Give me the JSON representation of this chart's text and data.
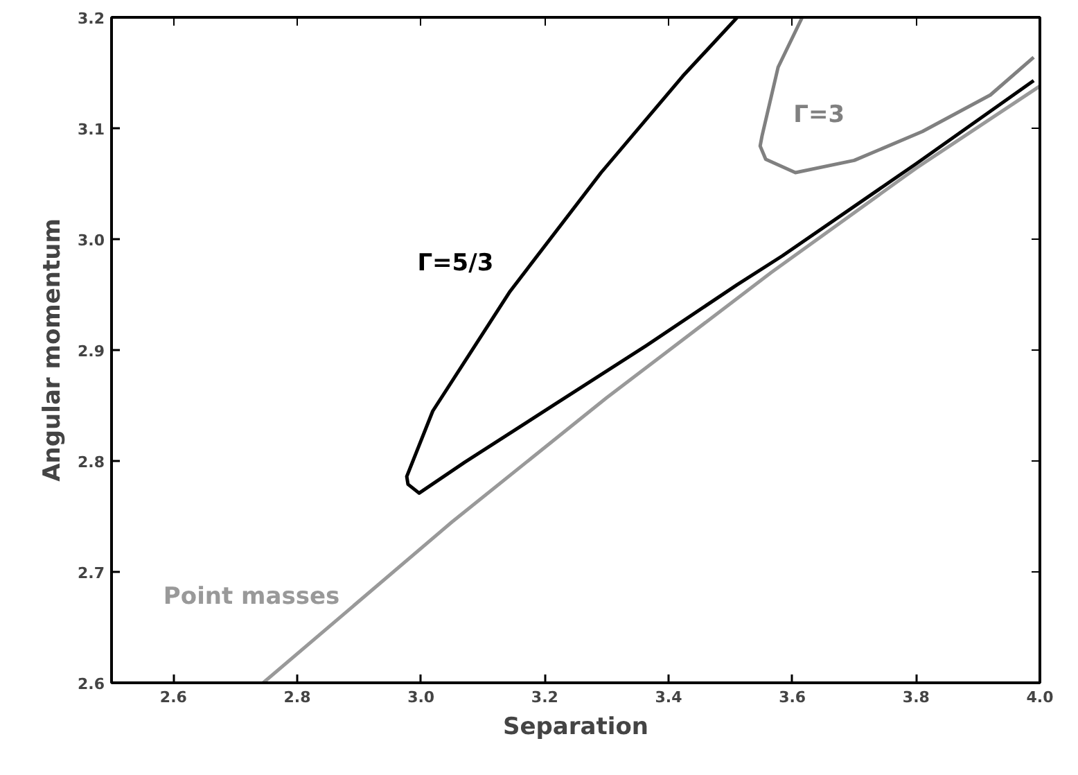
{
  "chart_data": {
    "type": "line",
    "xlabel": "Separation",
    "ylabel": "Angular momentum",
    "xlim": [
      2.5,
      4.0
    ],
    "ylim": [
      2.6,
      3.2
    ],
    "xticks": [
      2.6,
      2.8,
      {
        "value": 3.0,
        "label": "3.0"
      },
      3.2,
      3.4,
      3.6,
      3.8,
      {
        "value": 4.0,
        "label": "4.0"
      }
    ],
    "yticks": [
      2.6,
      2.7,
      2.8,
      2.9,
      {
        "value": 3.0,
        "label": "3.0"
      },
      3.1,
      3.2
    ],
    "series": [
      {
        "name": "Point masses",
        "color": "#999999",
        "x": [
          2.745,
          3.05,
          3.3,
          3.566,
          3.8,
          4.0
        ],
        "values": [
          2.6,
          2.745,
          2.857,
          2.97,
          3.064,
          3.138
        ]
      },
      {
        "name": "Γ=5/3",
        "color": "#000000",
        "x": [
          3.511,
          3.423,
          3.291,
          3.144,
          3.019,
          2.977,
          2.979,
          2.997,
          3.071,
          3.216,
          3.364,
          3.511,
          3.584,
          3.8,
          3.99
        ],
        "values": [
          3.2,
          3.147,
          3.06,
          2.953,
          2.845,
          2.786,
          2.779,
          2.771,
          2.799,
          2.851,
          2.904,
          2.959,
          2.985,
          3.068,
          3.143
        ]
      },
      {
        "name": "Γ=3",
        "color": "#808080",
        "x": [
          3.616,
          3.577,
          3.551,
          3.548,
          3.557,
          3.605,
          3.7,
          3.81,
          3.92,
          3.99
        ],
        "values": [
          3.2,
          3.155,
          3.093,
          3.084,
          3.072,
          3.06,
          3.071,
          3.097,
          3.13,
          3.164
        ]
      }
    ]
  }
}
